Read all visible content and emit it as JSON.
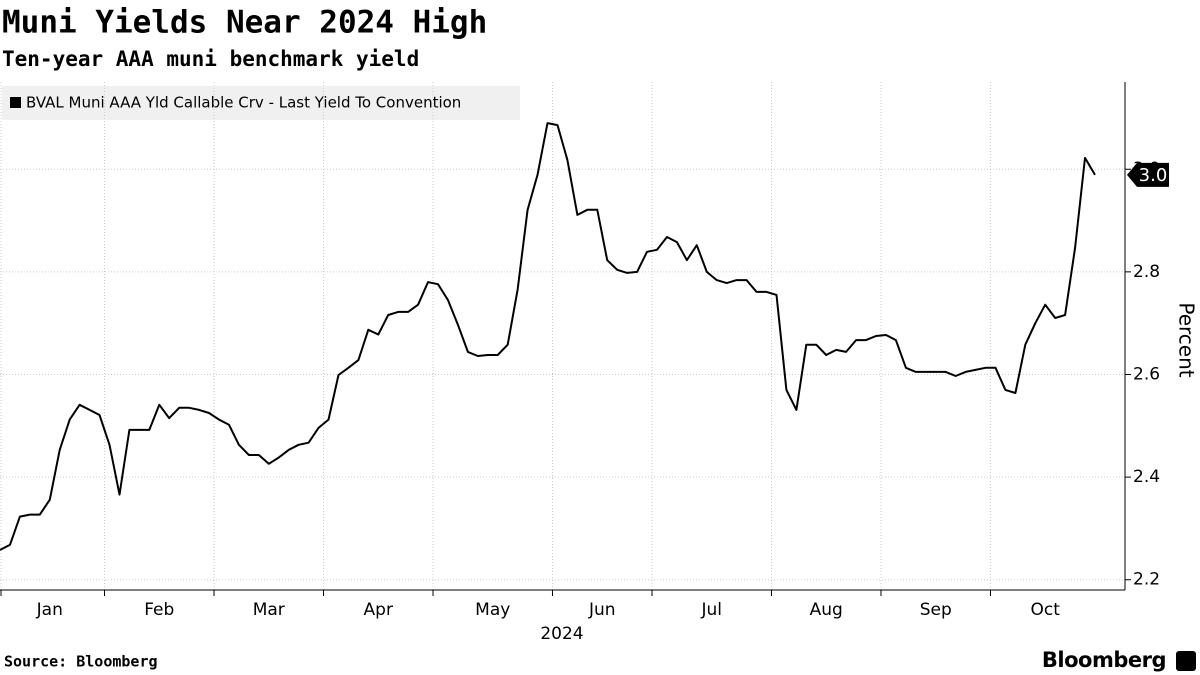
{
  "chart_data": {
    "type": "line",
    "title": "Muni Yields Near 2024 High",
    "subtitle": "Ten-year AAA muni benchmark yield",
    "xlabel": "2024",
    "ylabel": "Percent",
    "source": "Source: Bloomberg",
    "brand": "Bloomberg",
    "categories": [
      "Jan",
      null,
      null,
      null,
      null,
      null,
      null,
      null,
      null,
      null,
      null,
      "Feb",
      null,
      null,
      null,
      null,
      null,
      null,
      null,
      null,
      null,
      null,
      "Mar",
      null,
      null,
      null,
      null,
      null,
      null,
      null,
      null,
      null,
      null,
      "Apr",
      null,
      null,
      null,
      null,
      null,
      null,
      null,
      null,
      null,
      null,
      "May",
      null,
      null,
      null,
      null,
      null,
      null,
      null,
      null,
      null,
      null,
      null,
      "Jun",
      null,
      null,
      null,
      null,
      null,
      null,
      null,
      null,
      null,
      "Jul",
      null,
      null,
      null,
      null,
      null,
      null,
      null,
      null,
      null,
      null,
      null,
      "Aug",
      null,
      null,
      null,
      null,
      null,
      null,
      null,
      null,
      null,
      null,
      "Sep",
      null,
      null,
      null,
      null,
      null,
      null,
      null,
      null,
      null,
      null,
      "Oct",
      null,
      null,
      null,
      null,
      null,
      null,
      null,
      null,
      null,
      null
    ],
    "series": [
      {
        "name": "BVAL Muni AAA Yld Callable Crv - Last Yield To Convention",
        "color": "#000000",
        "values": [
          2.258,
          2.268,
          2.323,
          2.327,
          2.327,
          2.356,
          2.453,
          2.512,
          2.541,
          2.531,
          2.521,
          2.463,
          2.366,
          2.492,
          2.492,
          2.492,
          2.541,
          2.515,
          2.535,
          2.535,
          2.531,
          2.525,
          2.512,
          2.502,
          2.463,
          2.443,
          2.443,
          2.426,
          2.438,
          2.453,
          2.463,
          2.467,
          2.496,
          2.512,
          2.599,
          2.613,
          2.628,
          2.687,
          2.678,
          2.716,
          2.722,
          2.722,
          2.736,
          2.78,
          2.776,
          2.745,
          2.697,
          2.644,
          2.636,
          2.638,
          2.638,
          2.658,
          2.765,
          2.921,
          2.989,
          3.09,
          3.086,
          3.018,
          2.911,
          2.921,
          2.921,
          2.823,
          2.804,
          2.798,
          2.8,
          2.839,
          2.843,
          2.868,
          2.858,
          2.823,
          2.852,
          2.8,
          2.784,
          2.778,
          2.784,
          2.784,
          2.761,
          2.761,
          2.755,
          2.57,
          2.531,
          2.658,
          2.658,
          2.638,
          2.648,
          2.644,
          2.667,
          2.667,
          2.675,
          2.677,
          2.667,
          2.613,
          2.605,
          2.605,
          2.605,
          2.605,
          2.597,
          2.605,
          2.609,
          2.613,
          2.613,
          2.57,
          2.564,
          2.658,
          2.7,
          2.736,
          2.71,
          2.716,
          2.847,
          3.022,
          2.989
        ],
        "value_labels": [
          null,
          null,
          null,
          null,
          null,
          null,
          null,
          null,
          null,
          null,
          null,
          null,
          null,
          null,
          null,
          null,
          null,
          null,
          null,
          null,
          null,
          null,
          null,
          null,
          null,
          null,
          null,
          null,
          null,
          null,
          null,
          null,
          null,
          null,
          null,
          null,
          null,
          null,
          null,
          null,
          null,
          null,
          null,
          null,
          null,
          null,
          null,
          null,
          null,
          null,
          null,
          null,
          null,
          null,
          null,
          null,
          null,
          null,
          null,
          null,
          null,
          null,
          null,
          null,
          null,
          null,
          null,
          null,
          null,
          null,
          null,
          null,
          null,
          null,
          null,
          null,
          null,
          null,
          null,
          null,
          null,
          null,
          null,
          null,
          null,
          null,
          null,
          null,
          null,
          null,
          null,
          null,
          null,
          null,
          null,
          null,
          null,
          null,
          null,
          null,
          null,
          null,
          null,
          null,
          null,
          null,
          null,
          null,
          null,
          null,
          "3.0"
        ]
      }
    ],
    "ylim": [
      2.18,
      3.17
    ],
    "yticks": [
      2.2,
      2.4,
      2.6,
      2.8,
      {
        "value": 3,
        "label": "3.0"
      }
    ],
    "grid": true,
    "legend": "top-left"
  }
}
